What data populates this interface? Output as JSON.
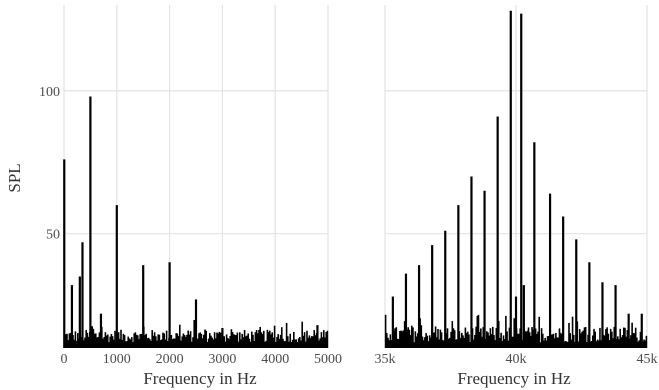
{
  "chart_data": [
    {
      "type": "bar",
      "xlabel": "Frequency in Hz",
      "ylabel": "SPL",
      "xlim": [
        0,
        5000
      ],
      "ylim": [
        10,
        130
      ],
      "grid": true,
      "legend": "none",
      "x_ticks": [
        {
          "value": 0,
          "label": "0"
        },
        {
          "value": 1000,
          "label": "1000"
        },
        {
          "value": 2000,
          "label": "2000"
        },
        {
          "value": 3000,
          "label": "3000"
        },
        {
          "value": 4000,
          "label": "4000"
        },
        {
          "value": 5000,
          "label": "5000"
        }
      ],
      "y_ticks": [
        {
          "value": 50,
          "label": "50"
        },
        {
          "value": 100,
          "label": "100"
        }
      ],
      "peaks": {
        "x": [
          5,
          150,
          300,
          350,
          500,
          700,
          1000,
          1500,
          2000,
          2500,
          3000,
          4800
        ],
        "y": [
          76,
          32,
          35,
          47,
          98,
          22,
          60,
          39,
          40,
          27,
          17,
          18
        ]
      },
      "noise_floor": {
        "min": 12,
        "max": 20
      }
    },
    {
      "type": "bar",
      "xlabel": "Frequency in Hz",
      "ylabel": "",
      "xlim": [
        35000,
        45000
      ],
      "ylim": [
        10,
        130
      ],
      "grid": true,
      "legend": "none",
      "x_ticks": [
        {
          "value": 35000,
          "label": "35k"
        },
        {
          "value": 40000,
          "label": "40k"
        },
        {
          "value": 45000,
          "label": "45k"
        }
      ],
      "y_ticks": [
        {
          "value": 50,
          "label": ""
        },
        {
          "value": 100,
          "label": ""
        }
      ],
      "peaks": {
        "x": [
          35300,
          35800,
          36300,
          36800,
          37300,
          37800,
          38300,
          38800,
          39300,
          39800,
          40000,
          40200,
          40300,
          40700,
          41300,
          41800,
          42300,
          42800,
          43300,
          43800,
          44300,
          44800
        ],
        "y": [
          28,
          36,
          39,
          46,
          51,
          60,
          70,
          65,
          91,
          128,
          28,
          127,
          32,
          82,
          64,
          56,
          48,
          40,
          33,
          32,
          22,
          22
        ]
      },
      "noise_floor": {
        "min": 12,
        "max": 22
      }
    }
  ]
}
